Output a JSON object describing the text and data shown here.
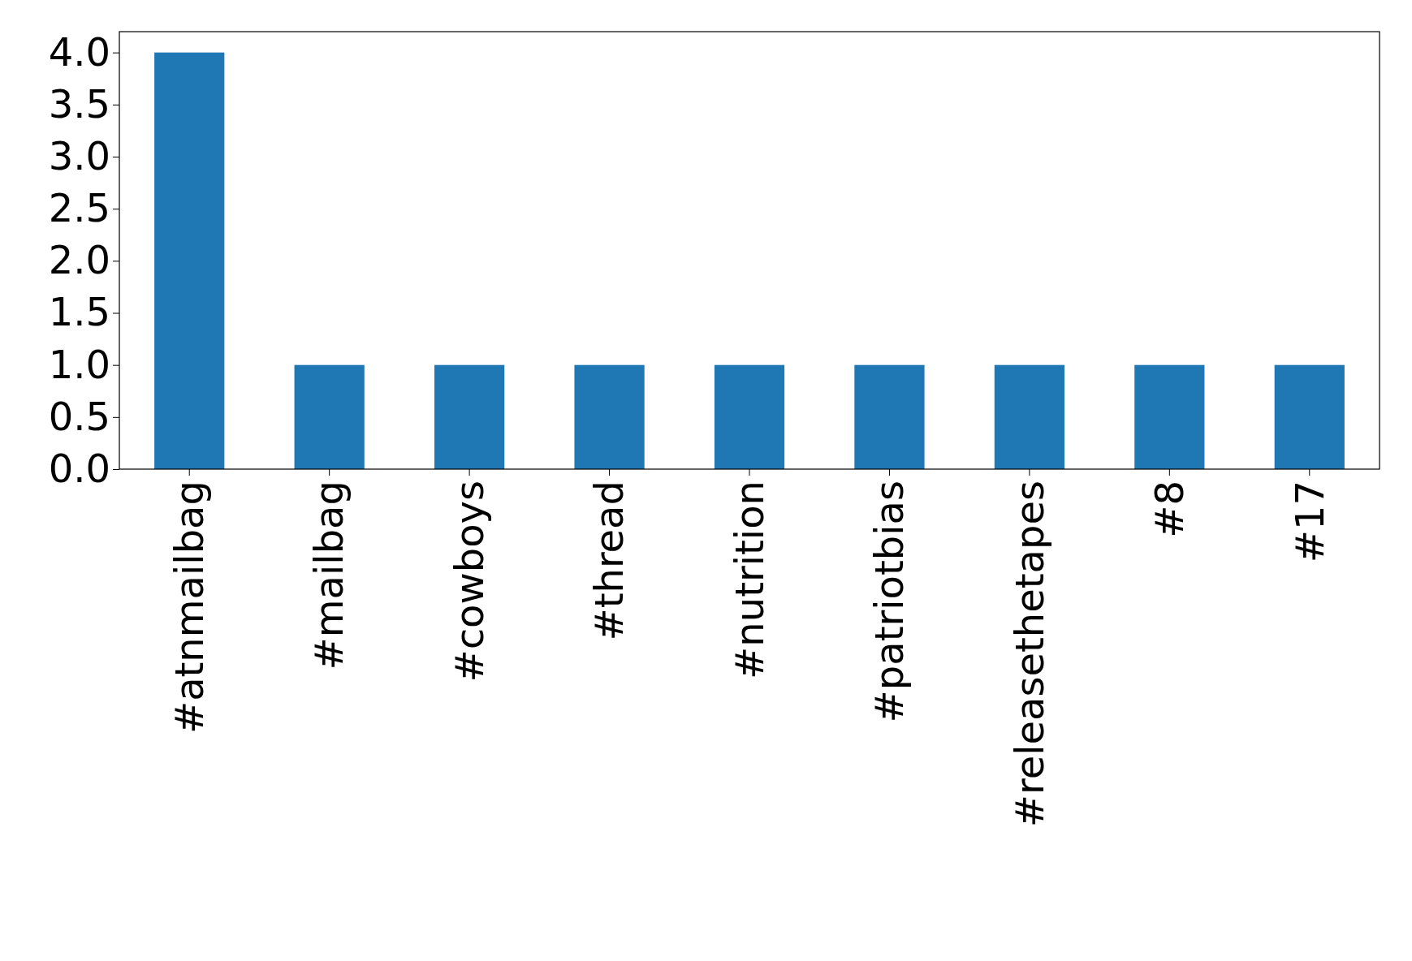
{
  "chart_data": {
    "type": "bar",
    "categories": [
      "#atnmailbag",
      "#mailbag",
      "#cowboys",
      "#thread",
      "#nutrition",
      "#patriotbias",
      "#releasethetapes",
      "#8",
      "#17"
    ],
    "values": [
      4,
      1,
      1,
      1,
      1,
      1,
      1,
      1,
      1
    ],
    "color": "#1f77b4",
    "ylim": [
      0,
      4.2
    ],
    "yticks": [
      {
        "value": 0,
        "label": "0.0"
      },
      {
        "value": 0.5,
        "label": "0.5"
      },
      {
        "value": 1,
        "label": "1.0"
      },
      {
        "value": 1.5,
        "label": "1.5"
      },
      {
        "value": 2,
        "label": "2.0"
      },
      {
        "value": 2.5,
        "label": "2.5"
      },
      {
        "value": 3,
        "label": "3.0"
      },
      {
        "value": 3.5,
        "label": "3.5"
      },
      {
        "value": 4,
        "label": "4.0"
      }
    ],
    "grid": false,
    "legend": false
  }
}
